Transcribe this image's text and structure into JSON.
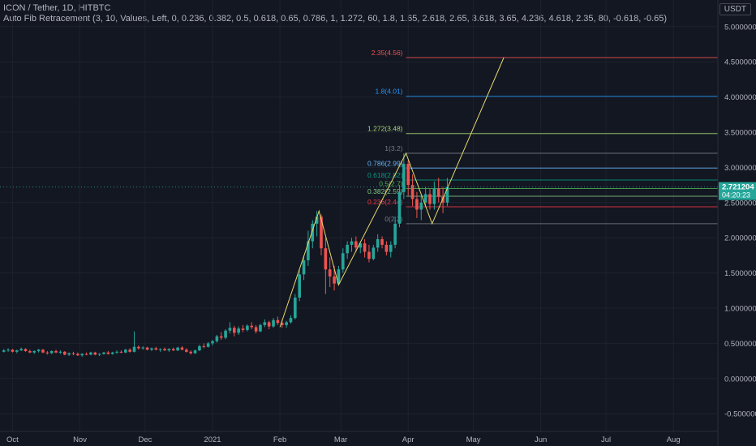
{
  "header": {
    "symbol_line": "ICON / Tether, 1D, HITBTC",
    "indicator_line": "Auto Fib Retracement (3, 10, Values, Left, 0, 0.236, 0.382, 0.5, 0.618, 0.65, 0.786, 1, 1.272, 60, 1.8, 1.65, 2.618, 2.65, 3.618, 3.65, 4.236, 4.618, 2.35, 80, -0.618, -0.65)"
  },
  "currency": "USDT",
  "price_tag": {
    "value": "2.721204",
    "countdown": "04:20:23",
    "color": "#26a69a"
  },
  "colors": {
    "background": "#131722",
    "up": "#26a69a",
    "down": "#ef5350",
    "zigzag": "#e6d96b",
    "axis_text": "#b2b5be",
    "grid": "#1e222d"
  },
  "chart_data": {
    "type": "candlestick",
    "title": "ICON / Tether, 1D, HITBTC",
    "y_axis": {
      "ticks": [
        "5.000000",
        "4.500000",
        "4.000000",
        "3.500000",
        "3.000000",
        "2.500000",
        "2.000000",
        "1.500000",
        "1.000000",
        "0.500000",
        "0.000000",
        "-0.500000"
      ],
      "tick_values": [
        5.0,
        4.5,
        4.0,
        3.5,
        3.0,
        2.5,
        2.0,
        1.5,
        1.0,
        0.5,
        0.0,
        -0.5
      ],
      "ylim": [
        -0.6,
        5.3
      ]
    },
    "x_axis": {
      "ticks": [
        "Oct",
        "Nov",
        "Dec",
        "2021",
        "Feb",
        "Mar",
        "Apr",
        "May",
        "Jun",
        "Jul",
        "Aug"
      ],
      "tick_dates": [
        "2020-10-01",
        "2020-11-01",
        "2020-12-01",
        "2021-01-01",
        "2021-02-01",
        "2021-03-01",
        "2021-04-01",
        "2021-05-01",
        "2021-06-01",
        "2021-07-01",
        "2021-08-01"
      ],
      "xlim": [
        "2020-09-27",
        "2021-08-22"
      ]
    },
    "fib_levels": [
      {
        "label": "2.35(4.56)",
        "ratio": 2.35,
        "price": 4.56,
        "color": "#f05350"
      },
      {
        "label": "1.8(4.01)",
        "ratio": 1.8,
        "price": 4.01,
        "color": "#2196f3"
      },
      {
        "label": "1.272(3.48)",
        "ratio": 1.272,
        "price": 3.48,
        "color": "#a5d66f"
      },
      {
        "label": "1(3.2)",
        "ratio": 1,
        "price": 3.2,
        "color": "#787b86"
      },
      {
        "label": "0.786(2.99)",
        "ratio": 0.786,
        "price": 2.99,
        "color": "#64b5f6"
      },
      {
        "label": "0.618(2.82)",
        "ratio": 0.618,
        "price": 2.82,
        "color": "#089981"
      },
      {
        "label": "0.5(2.7)",
        "ratio": 0.5,
        "price": 2.7,
        "color": "#4caf50"
      },
      {
        "label": "0.382(2.59)",
        "ratio": 0.382,
        "price": 2.59,
        "color": "#81c784"
      },
      {
        "label": "0.236(2.44)",
        "ratio": 0.236,
        "price": 2.44,
        "color": "#f23645"
      },
      {
        "label": "0(2.2)",
        "ratio": 0,
        "price": 2.2,
        "color": "#787b86"
      }
    ],
    "zigzag_points": [
      {
        "date": "2021-02-01",
        "price": 0.73
      },
      {
        "date": "2021-02-19",
        "price": 2.38
      },
      {
        "date": "2021-02-28",
        "price": 1.33
      },
      {
        "date": "2021-03-31",
        "price": 3.2
      },
      {
        "date": "2021-04-12",
        "price": 2.2
      },
      {
        "date": "2021-05-15",
        "price": 4.56
      }
    ],
    "candles": [
      [
        "2020-09-27",
        0.38,
        0.42,
        0.37,
        0.4
      ],
      [
        "2020-09-29",
        0.4,
        0.43,
        0.38,
        0.41
      ],
      [
        "2020-10-01",
        0.41,
        0.42,
        0.37,
        0.38
      ],
      [
        "2020-10-03",
        0.38,
        0.41,
        0.36,
        0.4
      ],
      [
        "2020-10-05",
        0.4,
        0.44,
        0.39,
        0.42
      ],
      [
        "2020-10-07",
        0.42,
        0.43,
        0.38,
        0.39
      ],
      [
        "2020-10-09",
        0.39,
        0.41,
        0.36,
        0.37
      ],
      [
        "2020-10-11",
        0.37,
        0.4,
        0.35,
        0.39
      ],
      [
        "2020-10-13",
        0.39,
        0.42,
        0.37,
        0.41
      ],
      [
        "2020-10-15",
        0.41,
        0.42,
        0.36,
        0.37
      ],
      [
        "2020-10-17",
        0.37,
        0.39,
        0.34,
        0.36
      ],
      [
        "2020-10-19",
        0.36,
        0.4,
        0.35,
        0.39
      ],
      [
        "2020-10-21",
        0.39,
        0.41,
        0.36,
        0.37
      ],
      [
        "2020-10-23",
        0.37,
        0.4,
        0.35,
        0.38
      ],
      [
        "2020-10-25",
        0.38,
        0.39,
        0.33,
        0.34
      ],
      [
        "2020-10-27",
        0.34,
        0.37,
        0.32,
        0.36
      ],
      [
        "2020-10-29",
        0.36,
        0.38,
        0.33,
        0.35
      ],
      [
        "2020-10-31",
        0.35,
        0.37,
        0.32,
        0.33
      ],
      [
        "2020-11-02",
        0.33,
        0.36,
        0.31,
        0.35
      ],
      [
        "2020-11-04",
        0.35,
        0.37,
        0.33,
        0.34
      ],
      [
        "2020-11-06",
        0.34,
        0.38,
        0.33,
        0.37
      ],
      [
        "2020-11-08",
        0.37,
        0.38,
        0.33,
        0.34
      ],
      [
        "2020-11-10",
        0.34,
        0.36,
        0.32,
        0.35
      ],
      [
        "2020-11-12",
        0.35,
        0.38,
        0.34,
        0.37
      ],
      [
        "2020-11-14",
        0.37,
        0.39,
        0.34,
        0.35
      ],
      [
        "2020-11-16",
        0.35,
        0.38,
        0.34,
        0.37
      ],
      [
        "2020-11-18",
        0.37,
        0.4,
        0.35,
        0.38
      ],
      [
        "2020-11-20",
        0.38,
        0.4,
        0.36,
        0.37
      ],
      [
        "2020-11-22",
        0.37,
        0.42,
        0.36,
        0.41
      ],
      [
        "2020-11-24",
        0.41,
        0.43,
        0.37,
        0.38
      ],
      [
        "2020-11-26",
        0.38,
        0.67,
        0.37,
        0.45
      ],
      [
        "2020-11-28",
        0.45,
        0.47,
        0.41,
        0.43
      ],
      [
        "2020-11-30",
        0.43,
        0.46,
        0.41,
        0.44
      ],
      [
        "2020-12-02",
        0.44,
        0.45,
        0.4,
        0.41
      ],
      [
        "2020-12-04",
        0.41,
        0.44,
        0.39,
        0.43
      ],
      [
        "2020-12-06",
        0.43,
        0.45,
        0.4,
        0.41
      ],
      [
        "2020-12-08",
        0.41,
        0.43,
        0.38,
        0.42
      ],
      [
        "2020-12-10",
        0.42,
        0.44,
        0.39,
        0.4
      ],
      [
        "2020-12-12",
        0.4,
        0.43,
        0.38,
        0.42
      ],
      [
        "2020-12-14",
        0.42,
        0.44,
        0.39,
        0.4
      ],
      [
        "2020-12-16",
        0.4,
        0.45,
        0.39,
        0.44
      ],
      [
        "2020-12-18",
        0.44,
        0.46,
        0.4,
        0.41
      ],
      [
        "2020-12-20",
        0.41,
        0.43,
        0.37,
        0.38
      ],
      [
        "2020-12-22",
        0.38,
        0.4,
        0.34,
        0.36
      ],
      [
        "2020-12-24",
        0.36,
        0.41,
        0.35,
        0.4
      ],
      [
        "2020-12-26",
        0.4,
        0.48,
        0.39,
        0.46
      ],
      [
        "2020-12-28",
        0.46,
        0.5,
        0.43,
        0.45
      ],
      [
        "2020-12-30",
        0.45,
        0.52,
        0.44,
        0.5
      ],
      [
        "2021-01-01",
        0.5,
        0.55,
        0.47,
        0.53
      ],
      [
        "2021-01-03",
        0.53,
        0.62,
        0.51,
        0.6
      ],
      [
        "2021-01-05",
        0.6,
        0.66,
        0.55,
        0.58
      ],
      [
        "2021-01-07",
        0.58,
        0.7,
        0.56,
        0.68
      ],
      [
        "2021-01-09",
        0.68,
        0.8,
        0.64,
        0.72
      ],
      [
        "2021-01-11",
        0.72,
        0.75,
        0.6,
        0.65
      ],
      [
        "2021-01-13",
        0.65,
        0.74,
        0.62,
        0.71
      ],
      [
        "2021-01-15",
        0.71,
        0.76,
        0.66,
        0.69
      ],
      [
        "2021-01-17",
        0.69,
        0.77,
        0.67,
        0.75
      ],
      [
        "2021-01-19",
        0.75,
        0.8,
        0.7,
        0.73
      ],
      [
        "2021-01-21",
        0.73,
        0.76,
        0.64,
        0.67
      ],
      [
        "2021-01-23",
        0.67,
        0.78,
        0.66,
        0.76
      ],
      [
        "2021-01-25",
        0.76,
        0.84,
        0.73,
        0.8
      ],
      [
        "2021-01-27",
        0.8,
        0.82,
        0.7,
        0.74
      ],
      [
        "2021-01-29",
        0.74,
        0.86,
        0.72,
        0.83
      ],
      [
        "2021-01-31",
        0.83,
        0.88,
        0.76,
        0.79
      ],
      [
        "2021-02-02",
        0.79,
        0.84,
        0.72,
        0.76
      ],
      [
        "2021-02-04",
        0.76,
        0.82,
        0.72,
        0.8
      ],
      [
        "2021-02-06",
        0.8,
        0.9,
        0.78,
        0.86
      ],
      [
        "2021-02-08",
        0.86,
        1.2,
        0.84,
        1.15
      ],
      [
        "2021-02-10",
        1.15,
        1.55,
        1.1,
        1.48
      ],
      [
        "2021-02-12",
        1.48,
        1.75,
        1.4,
        1.68
      ],
      [
        "2021-02-14",
        1.68,
        2.1,
        1.6,
        1.95
      ],
      [
        "2021-02-16",
        1.95,
        2.25,
        1.85,
        2.2
      ],
      [
        "2021-02-18",
        2.2,
        2.38,
        2.02,
        2.3
      ],
      [
        "2021-02-20",
        2.3,
        2.33,
        1.75,
        1.85
      ],
      [
        "2021-02-22",
        1.85,
        2.0,
        1.2,
        1.55
      ],
      [
        "2021-02-24",
        1.55,
        1.72,
        1.3,
        1.45
      ],
      [
        "2021-02-26",
        1.45,
        1.6,
        1.25,
        1.35
      ],
      [
        "2021-02-28",
        1.35,
        1.6,
        1.33,
        1.55
      ],
      [
        "2021-03-02",
        1.55,
        1.85,
        1.5,
        1.78
      ],
      [
        "2021-03-04",
        1.78,
        1.95,
        1.7,
        1.9
      ],
      [
        "2021-03-06",
        1.9,
        2.0,
        1.8,
        1.95
      ],
      [
        "2021-03-08",
        1.95,
        2.02,
        1.8,
        1.86
      ],
      [
        "2021-03-10",
        1.86,
        1.95,
        1.78,
        1.92
      ],
      [
        "2021-03-12",
        1.92,
        1.98,
        1.72,
        1.8
      ],
      [
        "2021-03-14",
        1.8,
        1.9,
        1.65,
        1.7
      ],
      [
        "2021-03-16",
        1.7,
        1.9,
        1.68,
        1.86
      ],
      [
        "2021-03-18",
        1.86,
        2.05,
        1.8,
        1.98
      ],
      [
        "2021-03-20",
        1.98,
        2.02,
        1.85,
        1.9
      ],
      [
        "2021-03-22",
        1.9,
        1.95,
        1.75,
        1.8
      ],
      [
        "2021-03-24",
        1.8,
        1.95,
        1.72,
        1.9
      ],
      [
        "2021-03-26",
        1.9,
        2.3,
        1.85,
        2.2
      ],
      [
        "2021-03-28",
        2.2,
        2.75,
        2.15,
        2.65
      ],
      [
        "2021-03-30",
        2.65,
        3.2,
        2.55,
        3.05
      ],
      [
        "2021-04-01",
        3.05,
        3.1,
        2.6,
        2.75
      ],
      [
        "2021-04-03",
        2.75,
        2.9,
        2.45,
        2.55
      ],
      [
        "2021-04-05",
        2.55,
        2.65,
        2.28,
        2.4
      ],
      [
        "2021-04-07",
        2.4,
        2.6,
        2.25,
        2.5
      ],
      [
        "2021-04-09",
        2.5,
        2.72,
        2.45,
        2.62
      ],
      [
        "2021-04-11",
        2.62,
        2.7,
        2.4,
        2.48
      ],
      [
        "2021-04-13",
        2.48,
        2.8,
        2.4,
        2.7
      ],
      [
        "2021-04-15",
        2.7,
        2.85,
        2.5,
        2.58
      ],
      [
        "2021-04-17",
        2.58,
        2.72,
        2.35,
        2.5
      ],
      [
        "2021-04-19",
        2.5,
        2.85,
        2.45,
        2.72
      ]
    ]
  }
}
